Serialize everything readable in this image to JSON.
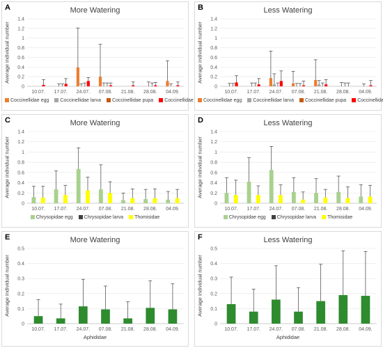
{
  "colors": {
    "egg_orange": "#ED7D31",
    "larva_gray": "#A5A5A5",
    "pupa_brown": "#C55A11",
    "adult_red": "#FF0000",
    "chrys_egg": "#A9D18E",
    "chrys_larva": "#404040",
    "thomisidae": "#FFFF00",
    "aphid_green": "#2E8B2E"
  },
  "chart_data": [
    {
      "panel_label": "A",
      "title": "More Watering",
      "type": "bar",
      "ylabel": "Average individual number",
      "xlabel": "",
      "ylim": [
        0,
        1.4
      ],
      "yticks": [
        "0",
        "0.2",
        "0.4",
        "0.6",
        "0.8",
        "1",
        "1.2",
        "1.4"
      ],
      "categories": [
        "10.07.",
        "17.07.",
        "24.07.",
        "07.08.",
        "21.08.",
        "28.08.",
        "04.09."
      ],
      "legend_position": "bottom",
      "series": [
        {
          "name": "Coccinellidae egg",
          "color": "#ED7D31",
          "values": [
            0,
            0,
            0.39,
            0.2,
            0,
            0,
            0.11
          ],
          "errors": [
            0,
            0,
            0.82,
            0.67,
            0,
            0,
            0.42
          ]
        },
        {
          "name": "Coccinellidae larva",
          "color": "#A5A5A5",
          "values": [
            0,
            0,
            0,
            0,
            0,
            0,
            0
          ],
          "errors": [
            0,
            0.05,
            0.05,
            0.07,
            0,
            0.09,
            0.05
          ]
        },
        {
          "name": "Coccinellidae pupa",
          "color": "#C55A11",
          "values": [
            0,
            0,
            0,
            0,
            0,
            0,
            0
          ],
          "errors": [
            0,
            0.05,
            0.07,
            0.07,
            0,
            0.07,
            0
          ]
        },
        {
          "name": "Coccinellidae adult",
          "color": "#FF0000",
          "values": [
            0.03,
            0.05,
            0.11,
            0.02,
            0.02,
            0.02,
            0.02
          ],
          "errors": [
            0.11,
            0.11,
            0.07,
            0.05,
            0.07,
            0.06,
            0.07
          ]
        }
      ]
    },
    {
      "panel_label": "B",
      "title": "Less Watering",
      "type": "bar",
      "ylabel": "Average individual number",
      "xlabel": "",
      "ylim": [
        0,
        1.4
      ],
      "yticks": [
        "0",
        "0.2",
        "0.4",
        "0.6",
        "0.8",
        "1",
        "1.2",
        "1.4"
      ],
      "categories": [
        "10.07.",
        "17.07.",
        "24.07.",
        "07.08.",
        "21.08.",
        "28.08.",
        "04.09."
      ],
      "legend_position": "bottom",
      "series": [
        {
          "name": "Coccinellidae egg",
          "color": "#ED7D31",
          "values": [
            0,
            0,
            0.17,
            0.06,
            0.13,
            0,
            0
          ],
          "errors": [
            0,
            0,
            0.56,
            0.25,
            0.42,
            0,
            0
          ]
        },
        {
          "name": "Coccinellidae larva",
          "color": "#A5A5A5",
          "values": [
            0,
            0,
            0.04,
            0,
            0.04,
            0,
            0
          ],
          "errors": [
            0.06,
            0.07,
            0.22,
            0.06,
            0.08,
            0.08,
            0.05
          ]
        },
        {
          "name": "Coccinellidae pupa",
          "color": "#C55A11",
          "values": [
            0,
            0,
            0,
            0,
            0,
            0,
            0
          ],
          "errors": [
            0.06,
            0.07,
            0.07,
            0.06,
            0.07,
            0.07,
            0
          ]
        },
        {
          "name": "Coccinellidae adult",
          "color": "#FF0000",
          "values": [
            0.08,
            0.04,
            0.11,
            0.02,
            0.04,
            0,
            0.02
          ],
          "errors": [
            0.14,
            0.12,
            0.21,
            0.09,
            0.1,
            0.07,
            0.1
          ]
        }
      ]
    },
    {
      "panel_label": "C",
      "title": "More Watering",
      "type": "bar",
      "ylabel": "Average individual number",
      "xlabel": "",
      "ylim": [
        0,
        1.4
      ],
      "yticks": [
        "0",
        "0.2",
        "0.4",
        "0.6",
        "0.8",
        "1",
        "1.2",
        "1.4"
      ],
      "categories": [
        "10.07.",
        "17.07.",
        "24.07.",
        "07.08.",
        "21.08.",
        "28.08.",
        "04.09."
      ],
      "legend_position": "bottom",
      "series": [
        {
          "name": "Chrysopidae egg",
          "color": "#A9D18E",
          "values": [
            0.12,
            0.27,
            0.67,
            0.27,
            0.06,
            0.08,
            0.07
          ],
          "errors": [
            0.21,
            0.36,
            0.41,
            0.48,
            0.14,
            0.19,
            0.16
          ]
        },
        {
          "name": "Chrysopidae larva",
          "color": "#404040",
          "values": [
            0,
            0,
            0,
            0,
            0,
            0,
            0
          ],
          "errors": [
            0,
            0,
            0,
            0,
            0,
            0,
            0
          ]
        },
        {
          "name": "Thomisidae",
          "color": "#FFFF00",
          "values": [
            0.11,
            0.16,
            0.25,
            0.2,
            0.1,
            0.1,
            0.1
          ],
          "errors": [
            0.22,
            0.19,
            0.26,
            0.22,
            0.18,
            0.18,
            0.17
          ]
        }
      ]
    },
    {
      "panel_label": "D",
      "title": "Less Watering",
      "type": "bar",
      "ylabel": "Average individual number",
      "xlabel": "",
      "ylim": [
        0,
        1.4
      ],
      "yticks": [
        "0",
        "0.2",
        "0.4",
        "0.6",
        "0.8",
        "1",
        "1.2",
        "1.4"
      ],
      "categories": [
        "10.07.",
        "17.07.",
        "24.07.",
        "07.08.",
        "21.08.",
        "28.08.",
        "04.09."
      ],
      "legend_position": "bottom",
      "series": [
        {
          "name": "Chrysopidae egg",
          "color": "#A9D18E",
          "values": [
            0.2,
            0.42,
            0.65,
            0.22,
            0.2,
            0.22,
            0.13
          ],
          "errors": [
            0.3,
            0.47,
            0.46,
            0.28,
            0.28,
            0.31,
            0.23
          ]
        },
        {
          "name": "Chrysopidae larva",
          "color": "#404040",
          "values": [
            0,
            0,
            0,
            0,
            0,
            0,
            0
          ],
          "errors": [
            0,
            0,
            0,
            0,
            0,
            0,
            0
          ]
        },
        {
          "name": "Thomisidae",
          "color": "#FFFF00",
          "values": [
            0.16,
            0.16,
            0.16,
            0.07,
            0.11,
            0.1,
            0.13
          ],
          "errors": [
            0.29,
            0.18,
            0.2,
            0.15,
            0.16,
            0.22,
            0.22
          ]
        }
      ]
    },
    {
      "panel_label": "E",
      "title": "More Watering",
      "type": "bar",
      "ylabel": "Average individual number",
      "xlabel": "Aphididae",
      "ylim": [
        0,
        0.5
      ],
      "yticks": [
        "0",
        "0.1",
        "0.2",
        "0.3",
        "0.4",
        "0.5"
      ],
      "categories": [
        "10.07.",
        "17.07.",
        "24.07.",
        "07.08.",
        "21.08.",
        "28.08.",
        "04.09."
      ],
      "legend_position": "none",
      "series": [
        {
          "name": "Aphididae",
          "color": "#2E8B2E",
          "values": [
            0.05,
            0.035,
            0.115,
            0.095,
            0.035,
            0.105,
            0.095
          ],
          "errors": [
            0.11,
            0.095,
            0.18,
            0.155,
            0.11,
            0.18,
            0.17
          ]
        }
      ]
    },
    {
      "panel_label": "F",
      "title": "Less Watering",
      "type": "bar",
      "ylabel": "Average individual number",
      "xlabel": "Aphididae",
      "ylim": [
        0,
        0.5
      ],
      "yticks": [
        "0",
        "0.1",
        "0.2",
        "0.3",
        "0.4",
        "0.5"
      ],
      "categories": [
        "10.07.",
        "17.07.",
        "24.07.",
        "07.08.",
        "21.08.",
        "28.08.",
        "04.09."
      ],
      "legend_position": "none",
      "series": [
        {
          "name": "Aphididae",
          "color": "#2E8B2E",
          "values": [
            0.13,
            0.08,
            0.16,
            0.08,
            0.15,
            0.19,
            0.185
          ],
          "errors": [
            0.18,
            0.15,
            0.225,
            0.16,
            0.245,
            0.295,
            0.295
          ]
        }
      ]
    }
  ]
}
